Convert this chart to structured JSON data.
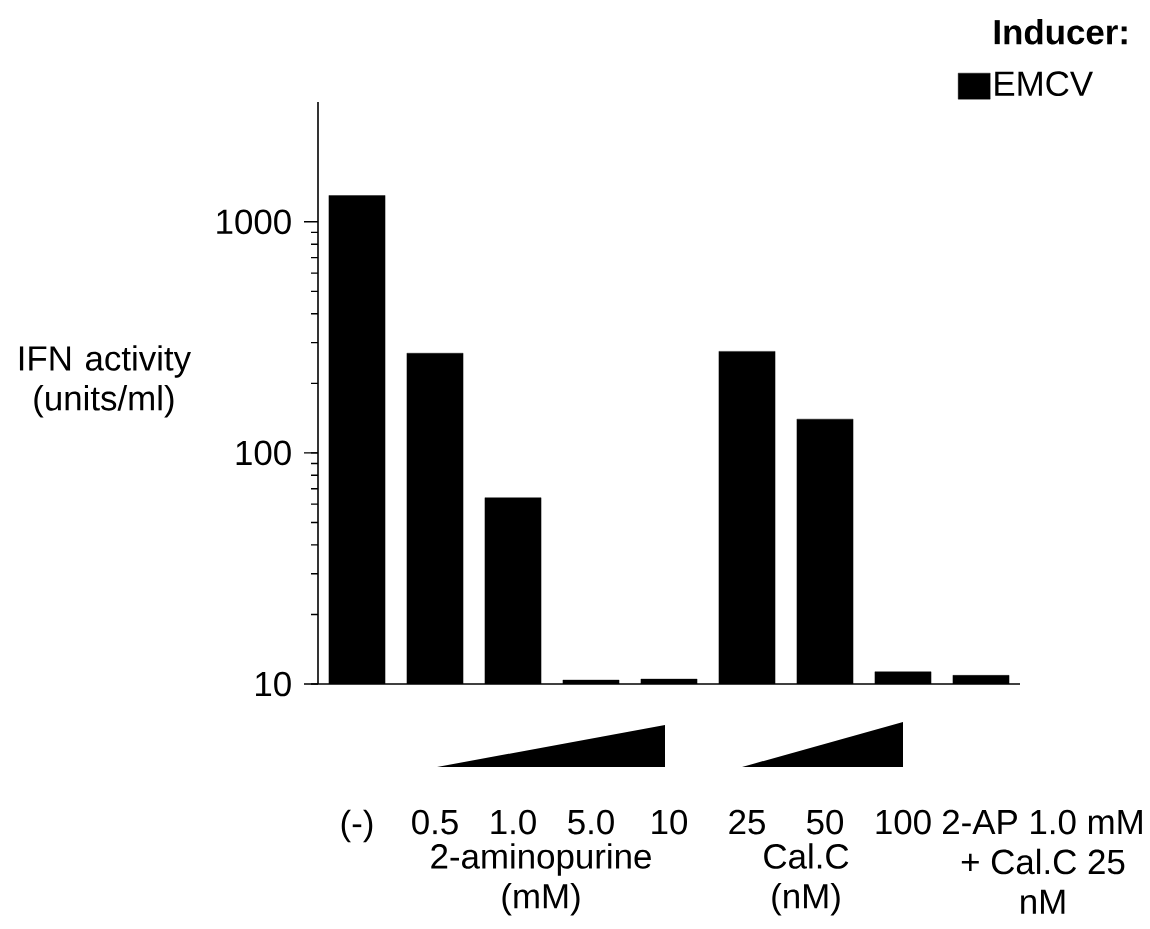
{
  "chart_data": {
    "type": "bar",
    "categories": [
      "(-)",
      "0.5",
      "1.0",
      "5.0",
      "10",
      "25",
      "50",
      "100",
      "2-AP 1.0 mM + Cal.C 25 nM"
    ],
    "ylabel": "IFN activity (units/ml)",
    "legend_title": "Inducer:",
    "series": [
      {
        "name": "EMCV",
        "color": "#000000",
        "values": [
          1300,
          270,
          64,
          10.4,
          10.5,
          275,
          140,
          11.3,
          10.9
        ]
      }
    ],
    "ylim": [
      10,
      3300
    ],
    "yticks": [
      10,
      100,
      1000
    ],
    "log": true,
    "grid": false,
    "legend": "top right",
    "annotations": [
      "2-aminopurine (mM)",
      "Cal.C (nM)"
    ]
  }
}
